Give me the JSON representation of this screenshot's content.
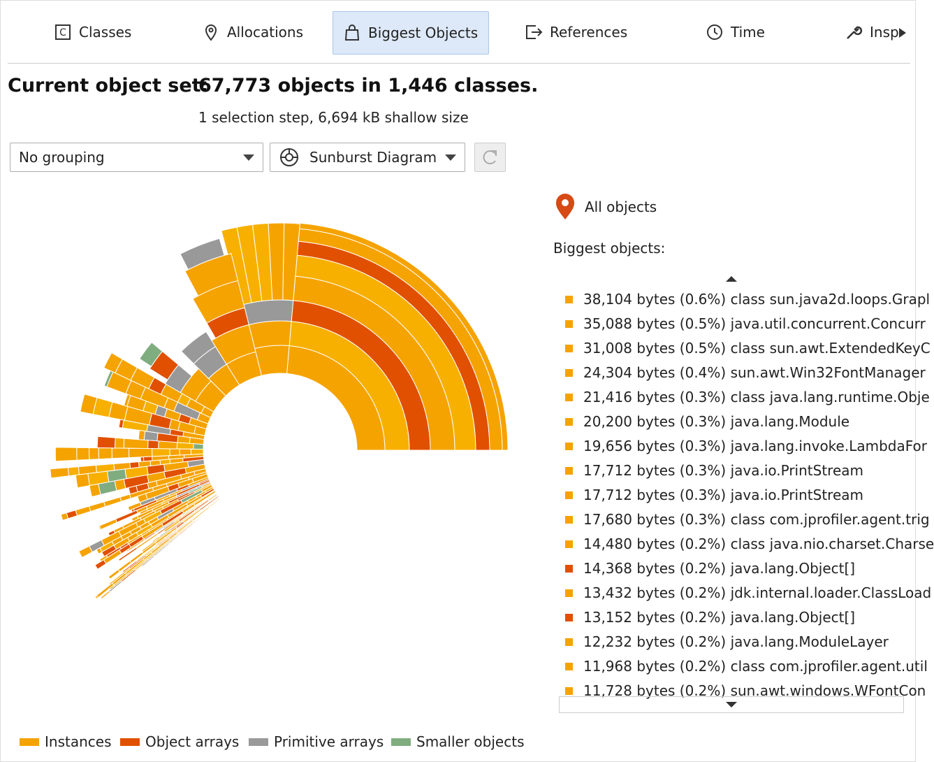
{
  "tabs": [
    "Classes",
    "Allocations",
    "Biggest Objects",
    "References",
    "Time",
    "Insp"
  ],
  "header": {
    "title": "Current object set:",
    "summary": "67,773 objects in 1,446 classes.",
    "subtitle": "1 selection step, 6,694 kB shallow size"
  },
  "controls": {
    "grouping": "No grouping",
    "view": "Sunburst Diagram"
  },
  "panel": {
    "location": "All objects",
    "heading": "Biggest objects:",
    "items": [
      {
        "text": "38,104 bytes (0.6%) class sun.java2d.loops.Grapl",
        "color": "#f5a300"
      },
      {
        "text": "35,088 bytes (0.5%) java.util.concurrent.Concurr",
        "color": "#f5a300"
      },
      {
        "text": "31,008 bytes (0.5%) class sun.awt.ExtendedKeyC",
        "color": "#f5a300"
      },
      {
        "text": "24,304 bytes (0.4%) sun.awt.Win32FontManager",
        "color": "#f5a300"
      },
      {
        "text": "21,416 bytes (0.3%) class java.lang.runtime.Obje",
        "color": "#f5a300"
      },
      {
        "text": "20,200 bytes (0.3%) java.lang.Module",
        "color": "#f5a300"
      },
      {
        "text": "19,656 bytes (0.3%) java.lang.invoke.LambdaFor",
        "color": "#f5a300"
      },
      {
        "text": "17,712 bytes (0.3%) java.io.PrintStream",
        "color": "#f5a300"
      },
      {
        "text": "17,712 bytes (0.3%) java.io.PrintStream",
        "color": "#f5a300"
      },
      {
        "text": "17,680 bytes (0.3%) class com.jprofiler.agent.trig",
        "color": "#f5a300"
      },
      {
        "text": "14,480 bytes (0.2%) class java.nio.charset.Charse",
        "color": "#f5a300"
      },
      {
        "text": "14,368 bytes (0.2%) java.lang.Object[]",
        "color": "#e05000"
      },
      {
        "text": "13,432 bytes (0.2%) jdk.internal.loader.ClassLoad",
        "color": "#f5a300"
      },
      {
        "text": "13,152 bytes (0.2%) java.lang.Object[]",
        "color": "#e05000"
      },
      {
        "text": "12,232 bytes (0.2%) java.lang.ModuleLayer",
        "color": "#f5a300"
      },
      {
        "text": "11,968 bytes (0.2%) class com.jprofiler.agent.util",
        "color": "#f5a300"
      },
      {
        "text": "11,728 bytes (0.2%) sun.awt.windows.WFontCon",
        "color": "#f5a300"
      }
    ]
  },
  "legend": [
    {
      "name": "Instances",
      "color": "#f5a300"
    },
    {
      "name": "Object arrays",
      "color": "#e05000"
    },
    {
      "name": "Primitive arrays",
      "color": "#999999"
    },
    {
      "name": "Smaller objects",
      "color": "#80ad80"
    }
  ]
}
